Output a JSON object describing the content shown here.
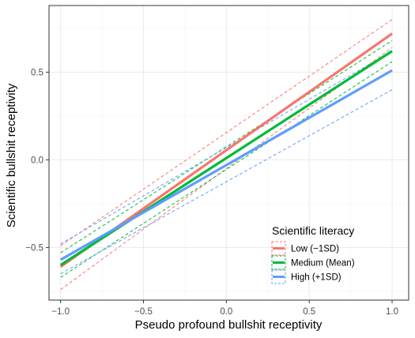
{
  "chart_data": {
    "type": "line",
    "title": "",
    "xlabel": "Pseudo profound bullshit receptivity",
    "ylabel": "Scientific bullshit receptivity",
    "xlim": [
      -1.07,
      1.1
    ],
    "ylim": [
      -0.8,
      0.88
    ],
    "x_ticks": [
      -1.0,
      -0.5,
      0.0,
      0.5,
      1.0
    ],
    "x_tick_labels": [
      "−1.0",
      "−0.5",
      "0.0",
      "0.5",
      "1.0"
    ],
    "y_ticks": [
      -0.5,
      0.0,
      0.5
    ],
    "y_tick_labels": [
      "−0.5",
      "0.0",
      "0.5"
    ],
    "grid": true,
    "legend": {
      "title": "Scientific literacy",
      "position": "bottom-right"
    },
    "x": [
      -1.0,
      1.0
    ],
    "series": [
      {
        "name": "Low (−1SD)",
        "color": "#F8766D",
        "values": [
          -0.61,
          0.72
        ],
        "ci_lower": [
          -0.74,
          0.64
        ],
        "ci_upper": [
          -0.49,
          0.8
        ]
      },
      {
        "name": "Medium (Mean)",
        "color": "#00BA38",
        "values": [
          -0.6,
          0.62
        ],
        "ci_lower": [
          -0.67,
          0.56
        ],
        "ci_upper": [
          -0.53,
          0.68
        ]
      },
      {
        "name": "High (+1SD)",
        "color": "#619CFF",
        "values": [
          -0.57,
          0.51
        ],
        "ci_lower": [
          -0.65,
          0.4
        ],
        "ci_upper": [
          -0.48,
          0.62
        ]
      }
    ]
  }
}
